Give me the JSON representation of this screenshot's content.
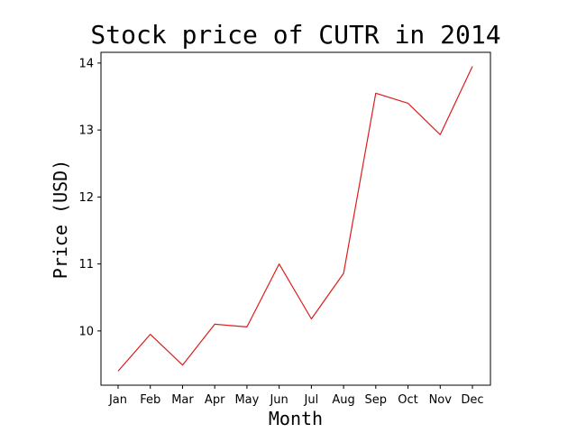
{
  "chart_data": {
    "type": "line",
    "title": "Stock price of CUTR in 2014",
    "xlabel": "Month",
    "ylabel": "Price (USD)",
    "categories": [
      "Jan",
      "Feb",
      "Mar",
      "Apr",
      "May",
      "Jun",
      "Jul",
      "Aug",
      "Sep",
      "Oct",
      "Nov",
      "Dec"
    ],
    "values": [
      9.4,
      9.95,
      9.49,
      10.1,
      10.06,
      11.0,
      10.18,
      10.86,
      13.55,
      13.4,
      12.93,
      13.95
    ],
    "ylim": [
      9.19,
      14.16
    ],
    "yticks": [
      10,
      11,
      12,
      13,
      14
    ],
    "grid": false,
    "colors": {
      "line": "#dd1c1c",
      "axes": "#000000"
    }
  }
}
